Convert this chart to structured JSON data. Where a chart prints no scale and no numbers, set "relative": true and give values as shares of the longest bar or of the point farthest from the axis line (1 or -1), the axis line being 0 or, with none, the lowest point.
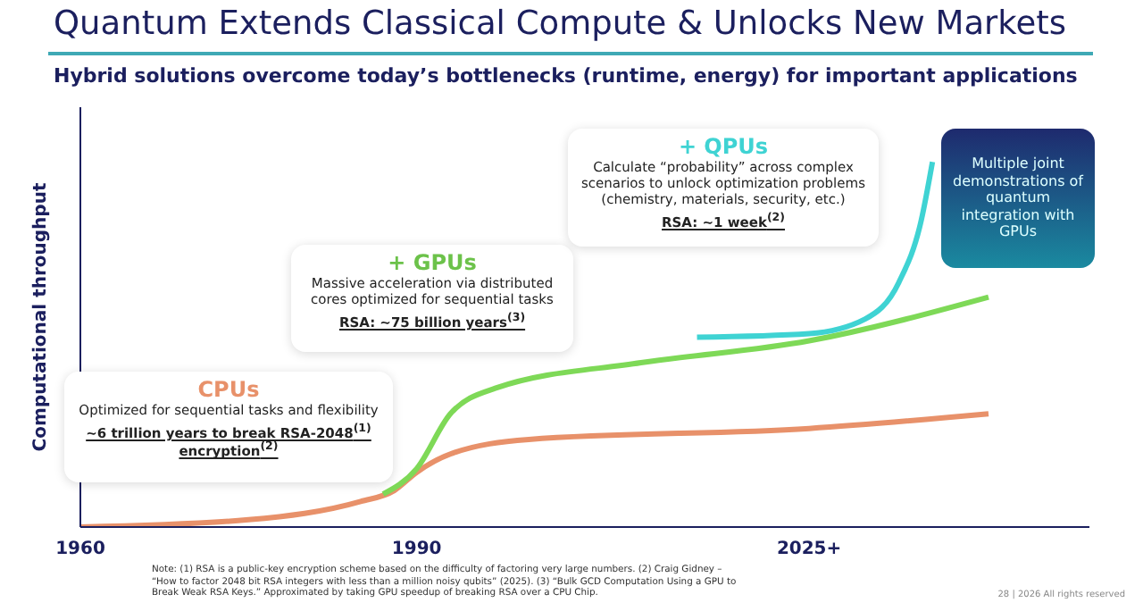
{
  "chart_data": {
    "type": "line",
    "title": "Quantum Extends Classical Compute & Unlocks New Markets",
    "subtitle": "Hybrid solutions overcome today’s bottlenecks (runtime, energy) for important applications",
    "ylabel": "Computational throughput",
    "relative": true,
    "xlim": [
      1960,
      2050
    ],
    "xticks": [
      1960,
      1990,
      {
        "value": 2025,
        "label": "2025+"
      }
    ],
    "grid": false,
    "legend": false,
    "marker": "none",
    "line_style": "solid",
    "series": [
      {
        "name": "CPUs",
        "color": "#e8916a",
        "x": [
          1960,
          1975,
          1985,
          1988,
          1990,
          1993,
          2000,
          2025,
          2041
        ],
        "values": [
          0,
          0.02,
          0.07,
          0.1,
          0.15,
          0.2,
          0.24,
          0.27,
          0.31
        ]
      },
      {
        "name": "+ GPUs",
        "color": "#7ed957",
        "x": [
          1987,
          1990,
          1993,
          1997,
          2010,
          2025,
          2041
        ],
        "values": [
          0.09,
          0.16,
          0.31,
          0.38,
          0.45,
          0.51,
          0.63
        ]
      },
      {
        "name": "+ QPUs",
        "color": "#3fd3d3",
        "x": [
          2015,
          2025,
          2030,
          2033,
          2035,
          2036
        ],
        "values": [
          0.52,
          0.53,
          0.57,
          0.67,
          0.84,
          1.0
        ]
      }
    ],
    "annotations": [
      "Optimized for sequential tasks and flexibility",
      "~6 trillion years to break RSA-2048$^{(1)}$ encryption$^{(2)}$",
      "Massive acceleration via distributed cores optimized for sequential tasks",
      "RSA: ~75 billion years$^{(3)}$",
      "Calculate “probability” across complex scenarios to unlock optimization problems (chemistry, materials, security, etc.)",
      "RSA: ~1 week$^{(2)}$",
      "Multiple joint demonstrations of quantum integration with GPUs",
      "Note: (1) RSA is a public-key encryption scheme based on the difficulty of factoring very large numbers. (2) Craig Gidney – “How to factor 2048 bit RSA integers with less than a million noisy qubits” (2025). (3) “Bulk GCD Computation Using a GPU to Break Weak RSA Keys.” Approximated by taking GPU speedup of breaking RSA over a CPU Chip.",
      "28 | 2026 All rights reserved"
    ]
  }
}
